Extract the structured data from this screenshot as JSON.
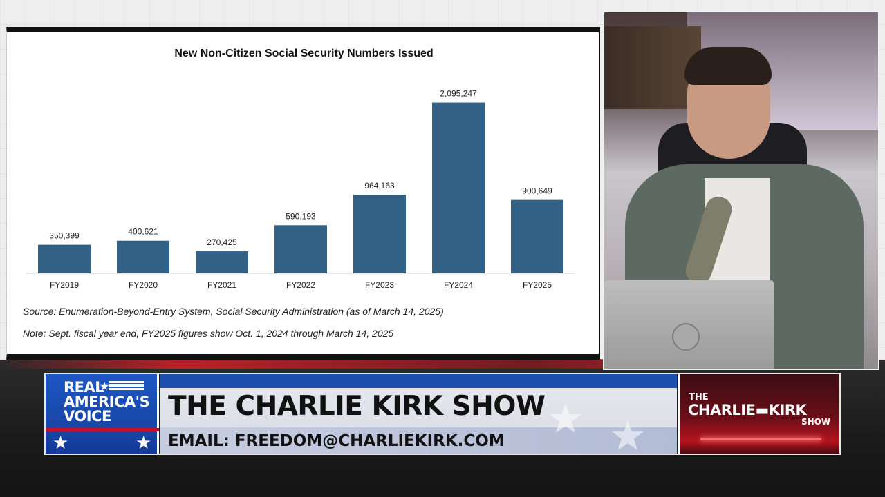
{
  "chart_data": {
    "type": "bar",
    "title": "New Non-Citizen Social Security Numbers Issued",
    "categories": [
      "FY2019",
      "FY2020",
      "FY2021",
      "FY2022",
      "FY2023",
      "FY2024",
      "FY2025"
    ],
    "values": [
      350399,
      400621,
      270425,
      590193,
      964163,
      2095247,
      900649
    ],
    "value_labels": [
      "350,399",
      "400,621",
      "270,425",
      "590,193",
      "964,163",
      "2,095,247",
      "900,649"
    ],
    "xlabel": "",
    "ylabel": "",
    "ylim": [
      0,
      2100000
    ],
    "grid": false,
    "bar_color": "#336085"
  },
  "chart_notes": {
    "source": "Source: Enumeration-Beyond-Entry System, Social Security Administration (as of March 14, 2025)",
    "note": "Note: Sept. fiscal year end, FY2025 figures show Oct. 1, 2024 through March 14, 2025"
  },
  "lower_third": {
    "network_line1": "REAL",
    "network_line2": "AMERICA'S",
    "network_line3": "VOICE",
    "show_title": "THE CHARLIE KIRK SHOW",
    "email": "EMAIL: FREEDOM@CHARLIEKIRK.COM",
    "logo_the": "THE",
    "logo_name": "CHARLIE▬KIRK",
    "logo_show": "SHOW",
    "star_icon": "★"
  }
}
